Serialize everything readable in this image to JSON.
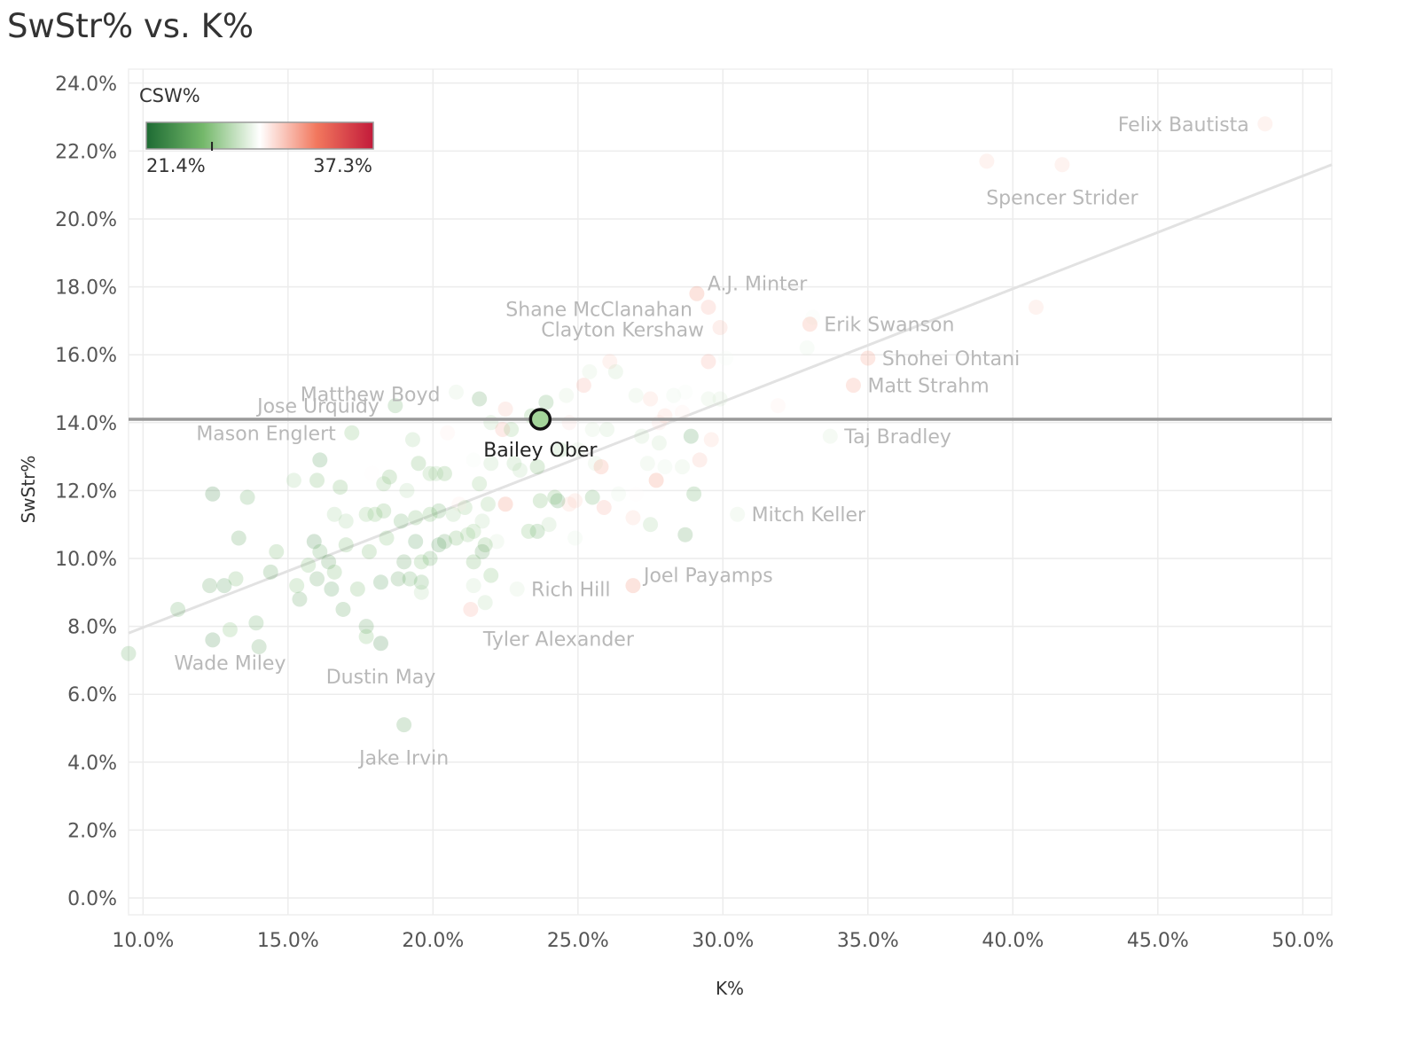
{
  "chart_data": {
    "type": "scatter",
    "title": "SwStr% vs. K%",
    "xlabel": "K%",
    "ylabel": "SwStr%",
    "xlim": [
      9.5,
      51.0
    ],
    "ylim": [
      0,
      24.0
    ],
    "x_ticks": [
      10,
      15,
      20,
      25,
      30,
      35,
      40,
      45,
      50
    ],
    "x_tick_labels": [
      "10.0%",
      "15.0%",
      "20.0%",
      "25.0%",
      "30.0%",
      "35.0%",
      "40.0%",
      "45.0%",
      "50.0%"
    ],
    "y_ticks": [
      0,
      2,
      4,
      6,
      8,
      10,
      12,
      14,
      16,
      18,
      20,
      22,
      24
    ],
    "y_tick_labels": [
      "0.0%",
      "2.0%",
      "4.0%",
      "6.0%",
      "8.0%",
      "10.0%",
      "12.0%",
      "14.0%",
      "16.0%",
      "18.0%",
      "20.0%",
      "22.0%",
      "24.0%"
    ],
    "grid": true,
    "reference_line": {
      "axis": "y",
      "value": 14.1,
      "label": ""
    },
    "trend_line": {
      "x": [
        9.5,
        51.0
      ],
      "y": [
        7.8,
        21.6
      ]
    },
    "color_legend": {
      "title": "CSW%",
      "min": 21.4,
      "max": 37.3,
      "min_label": "21.4%",
      "max_label": "37.3%",
      "marker_value": 26.0,
      "position": "top-left",
      "colors": [
        "#1d6b33",
        "#74b86a",
        "#ffffff",
        "#f2785e",
        "#c21a3a"
      ]
    },
    "highlight": {
      "name": "Bailey Ober",
      "x": 23.7,
      "y": 14.1,
      "csw": 26.0
    },
    "labeled_points": [
      {
        "name": "Felix Bautista",
        "x": 48.7,
        "y": 22.8,
        "csw": 31.0,
        "label_side": "left"
      },
      {
        "name": "Spencer Strider",
        "x": 41.7,
        "y": 21.6,
        "csw": 31.0,
        "label_side": "below"
      },
      {
        "name": "A.J. Minter",
        "x": 29.1,
        "y": 17.8,
        "csw": 33.0,
        "label_side": "right-up"
      },
      {
        "name": "Shane McClanahan",
        "x": 29.5,
        "y": 17.4,
        "csw": 32.0,
        "label_side": "left-up"
      },
      {
        "name": "Erik Swanson",
        "x": 33.0,
        "y": 16.9,
        "csw": 32.5,
        "label_side": "right"
      },
      {
        "name": "Clayton Kershaw",
        "x": 29.9,
        "y": 16.8,
        "csw": 31.5,
        "label_side": "left-up"
      },
      {
        "name": "Shohei Ohtani",
        "x": 35.0,
        "y": 15.9,
        "csw": 32.5,
        "label_side": "right"
      },
      {
        "name": "Matthew Boyd",
        "x": 20.8,
        "y": 14.9,
        "csw": 28.0,
        "label_side": "left-up"
      },
      {
        "name": "Matt Strahm",
        "x": 34.5,
        "y": 15.1,
        "csw": 32.5,
        "label_side": "right"
      },
      {
        "name": "Jose Urquidy",
        "x": 18.7,
        "y": 14.5,
        "csw": 24.5,
        "label_side": "left"
      },
      {
        "name": "Mason Englert",
        "x": 17.2,
        "y": 13.7,
        "csw": 25.5,
        "label_side": "left"
      },
      {
        "name": "Taj Bradley",
        "x": 33.7,
        "y": 13.6,
        "csw": 28.0,
        "label_side": "right"
      },
      {
        "name": "Mitch Keller",
        "x": 30.5,
        "y": 11.3,
        "csw": 28.0,
        "label_side": "right"
      },
      {
        "name": "Joel Payamps",
        "x": 26.9,
        "y": 9.2,
        "csw": 33.0,
        "label_side": "right-up"
      },
      {
        "name": "Rich Hill",
        "x": 22.9,
        "y": 9.1,
        "csw": 28.0,
        "label_side": "right"
      },
      {
        "name": "Tyler Alexander",
        "x": 21.3,
        "y": 8.5,
        "csw": 32.0,
        "label_side": "right-down"
      },
      {
        "name": "Wade Miley",
        "x": 13.0,
        "y": 7.9,
        "csw": 25.5,
        "label_side": "below"
      },
      {
        "name": "Dustin May",
        "x": 18.2,
        "y": 7.5,
        "csw": 22.8,
        "label_side": "below"
      },
      {
        "name": "Jake Irvin",
        "x": 19.0,
        "y": 5.1,
        "csw": 23.8,
        "label_side": "below"
      }
    ],
    "points": [
      [
        39.1,
        21.7,
        31.0
      ],
      [
        40.8,
        17.4,
        31.0
      ],
      [
        29.5,
        15.8,
        32.0
      ],
      [
        30.1,
        15.9,
        29.0
      ],
      [
        32.9,
        16.2,
        28.5
      ],
      [
        33.1,
        17.1,
        29.0
      ],
      [
        26.1,
        15.8,
        31.0
      ],
      [
        25.4,
        15.5,
        28.0
      ],
      [
        26.3,
        15.5,
        27.5
      ],
      [
        25.2,
        15.1,
        32.0
      ],
      [
        24.6,
        14.8,
        28.0
      ],
      [
        27.0,
        14.8,
        28.0
      ],
      [
        27.5,
        14.7,
        31.0
      ],
      [
        28.3,
        14.8,
        28.5
      ],
      [
        28.7,
        14.9,
        29.0
      ],
      [
        29.5,
        14.7,
        28.0
      ],
      [
        29.9,
        14.7,
        28.0
      ],
      [
        31.9,
        14.5,
        30.0
      ],
      [
        28.2,
        14.3,
        29.5
      ],
      [
        27.8,
        14.0,
        30.5
      ],
      [
        24.7,
        14.0,
        30.5
      ],
      [
        25.5,
        13.8,
        28.0
      ],
      [
        26.0,
        13.8,
        27.5
      ],
      [
        27.2,
        13.6,
        27.5
      ],
      [
        27.8,
        13.4,
        27.5
      ],
      [
        28.9,
        13.6,
        23.5
      ],
      [
        29.6,
        13.5,
        31.0
      ],
      [
        25.0,
        13.2,
        28.0
      ],
      [
        25.6,
        12.8,
        28.0
      ],
      [
        25.8,
        12.7,
        32.5
      ],
      [
        27.4,
        12.8,
        28.0
      ],
      [
        28.0,
        12.7,
        28.5
      ],
      [
        29.2,
        12.9,
        31.5
      ],
      [
        28.6,
        12.7,
        28.0
      ],
      [
        27.7,
        12.3,
        33.0
      ],
      [
        29.0,
        11.9,
        24.5
      ],
      [
        26.4,
        11.9,
        28.5
      ],
      [
        27.0,
        11.9,
        29.5
      ],
      [
        25.9,
        11.5,
        32.0
      ],
      [
        24.7,
        11.6,
        31.0
      ],
      [
        23.7,
        11.7,
        25.0
      ],
      [
        24.3,
        11.7,
        23.5
      ],
      [
        25.5,
        11.8,
        24.5
      ],
      [
        26.9,
        11.2,
        31.0
      ],
      [
        27.5,
        11.0,
        26.5
      ],
      [
        28.7,
        10.7,
        24.0
      ],
      [
        24.0,
        11.0,
        27.0
      ],
      [
        24.9,
        10.6,
        28.5
      ],
      [
        23.3,
        10.8,
        25.5
      ],
      [
        22.2,
        10.5,
        28.0
      ],
      [
        21.8,
        10.4,
        25.0
      ],
      [
        21.2,
        10.7,
        26.0
      ],
      [
        20.4,
        10.5,
        24.0
      ],
      [
        22.5,
        14.4,
        31.5
      ],
      [
        22.0,
        14.0,
        27.0
      ],
      [
        22.4,
        13.8,
        32.0
      ],
      [
        23.4,
        14.2,
        25.5
      ],
      [
        21.6,
        14.7,
        24.0
      ],
      [
        20.1,
        12.5,
        26.5
      ],
      [
        20.4,
        12.5,
        25.0
      ],
      [
        21.4,
        12.9,
        29.0
      ],
      [
        22.0,
        12.8,
        27.0
      ],
      [
        22.8,
        12.8,
        26.5
      ],
      [
        23.6,
        12.7,
        25.0
      ],
      [
        21.6,
        12.2,
        26.0
      ],
      [
        22.5,
        11.6,
        33.0
      ],
      [
        21.9,
        11.6,
        26.0
      ],
      [
        21.1,
        11.5,
        26.0
      ],
      [
        20.9,
        11.6,
        30.0
      ],
      [
        20.7,
        11.3,
        26.5
      ],
      [
        21.7,
        11.1,
        27.0
      ],
      [
        21.4,
        10.8,
        26.0
      ],
      [
        20.2,
        11.4,
        24.5
      ],
      [
        19.9,
        11.3,
        25.5
      ],
      [
        19.4,
        11.2,
        25.0
      ],
      [
        18.9,
        11.1,
        24.5
      ],
      [
        18.3,
        11.4,
        25.0
      ],
      [
        18.0,
        11.3,
        25.5
      ],
      [
        17.7,
        11.3,
        26.0
      ],
      [
        17.0,
        11.1,
        26.5
      ],
      [
        16.6,
        11.3,
        26.5
      ],
      [
        19.1,
        12.0,
        27.0
      ],
      [
        19.5,
        12.8,
        25.0
      ],
      [
        19.9,
        12.5,
        26.0
      ],
      [
        18.5,
        12.4,
        25.0
      ],
      [
        17.9,
        12.5,
        29.5
      ],
      [
        18.3,
        12.2,
        26.0
      ],
      [
        16.8,
        12.1,
        25.0
      ],
      [
        15.2,
        12.3,
        26.5
      ],
      [
        16.0,
        12.3,
        25.0
      ],
      [
        16.1,
        12.9,
        23.5
      ],
      [
        19.3,
        13.5,
        26.5
      ],
      [
        20.5,
        13.7,
        30.0
      ],
      [
        12.4,
        11.9,
        22.8
      ],
      [
        13.6,
        11.8,
        24.5
      ],
      [
        13.3,
        10.6,
        23.8
      ],
      [
        14.6,
        10.2,
        25.0
      ],
      [
        15.9,
        10.5,
        23.0
      ],
      [
        16.1,
        10.2,
        24.5
      ],
      [
        16.4,
        9.9,
        24.0
      ],
      [
        17.0,
        10.4,
        25.0
      ],
      [
        17.8,
        10.2,
        25.0
      ],
      [
        18.4,
        10.6,
        25.5
      ],
      [
        19.0,
        9.9,
        24.0
      ],
      [
        19.4,
        10.5,
        23.5
      ],
      [
        19.9,
        10.0,
        24.5
      ],
      [
        20.2,
        10.4,
        23.5
      ],
      [
        20.8,
        10.6,
        25.0
      ],
      [
        21.4,
        9.9,
        25.0
      ],
      [
        21.7,
        10.2,
        24.0
      ],
      [
        22.0,
        9.5,
        25.5
      ],
      [
        21.8,
        8.7,
        27.0
      ],
      [
        21.4,
        9.2,
        27.5
      ],
      [
        19.6,
        9.9,
        25.5
      ],
      [
        19.2,
        9.4,
        24.5
      ],
      [
        19.6,
        9.3,
        24.5
      ],
      [
        19.6,
        9.0,
        27.0
      ],
      [
        18.8,
        9.4,
        24.0
      ],
      [
        18.2,
        9.3,
        23.5
      ],
      [
        17.4,
        9.1,
        25.0
      ],
      [
        16.6,
        9.6,
        25.0
      ],
      [
        16.0,
        9.4,
        24.0
      ],
      [
        15.7,
        9.8,
        25.5
      ],
      [
        15.3,
        9.2,
        25.5
      ],
      [
        15.4,
        8.8,
        24.0
      ],
      [
        16.5,
        9.1,
        23.5
      ],
      [
        16.9,
        8.5,
        23.8
      ],
      [
        14.4,
        9.6,
        23.8
      ],
      [
        13.2,
        9.4,
        25.0
      ],
      [
        12.3,
        9.2,
        24.0
      ],
      [
        12.8,
        9.2,
        23.5
      ],
      [
        11.2,
        8.5,
        24.5
      ],
      [
        12.4,
        7.6,
        23.0
      ],
      [
        13.9,
        8.1,
        24.5
      ],
      [
        14.0,
        7.4,
        24.0
      ],
      [
        17.7,
        8.0,
        24.0
      ],
      [
        17.7,
        7.7,
        25.5
      ],
      [
        9.5,
        7.2,
        24.5
      ],
      [
        23.6,
        10.8,
        24.5
      ],
      [
        23.9,
        14.6,
        24.5
      ],
      [
        24.4,
        13.2,
        26.5
      ],
      [
        22.7,
        13.8,
        26.0
      ],
      [
        23.0,
        12.6,
        27.0
      ],
      [
        24.2,
        11.8,
        25.0
      ],
      [
        24.9,
        11.7,
        31.0
      ],
      [
        28.0,
        14.2,
        31.0
      ],
      [
        28.6,
        14.3,
        30.0
      ]
    ]
  }
}
